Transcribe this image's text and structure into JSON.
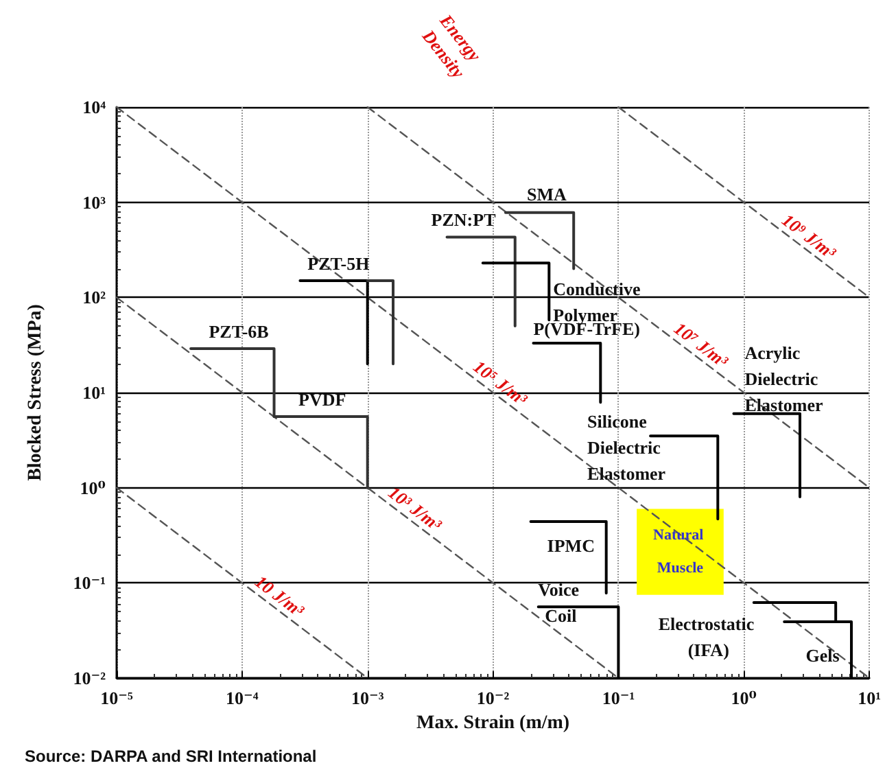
{
  "chart_data": {
    "type": "line",
    "xlabel": "Max. Strain (m/m)",
    "ylabel": "Blocked Stress (MPa)",
    "annotations": [
      "Energy Density",
      "Source: DARPA and SRI International"
    ],
    "log": "xy",
    "grid": true,
    "marker": "none",
    "xlim": [
      1e-05,
      10
    ],
    "ylim": [
      0.01,
      10000
    ],
    "xticks": [
      {
        "value": 1e-05,
        "label": "10⁻⁵"
      },
      {
        "value": 0.0001,
        "label": "10⁻⁴"
      },
      {
        "value": 0.001,
        "label": "10⁻³"
      },
      {
        "value": 0.01,
        "label": "10⁻²"
      },
      {
        "value": 0.1,
        "label": "10⁻¹"
      },
      {
        "value": 1,
        "label": "10⁰"
      },
      {
        "value": 10,
        "label": "10¹"
      }
    ],
    "yticks": [
      {
        "value": 0.01,
        "label": "10⁻²"
      },
      {
        "value": 0.1,
        "label": "10⁻¹"
      },
      {
        "value": 1,
        "label": "10⁰"
      },
      {
        "value": 10,
        "label": "10¹"
      },
      {
        "value": 100,
        "label": "10²"
      },
      {
        "value": 1000,
        "label": "10³"
      },
      {
        "value": 10000,
        "label": "10⁴"
      }
    ],
    "series": [
      {
        "name": "10 J/m³",
        "color": "#555555",
        "line_style": "dashed",
        "x": [
          1e-05,
          0.001
        ],
        "values": [
          1,
          0.01
        ]
      },
      {
        "name": "10³ J/m³",
        "color": "#555555",
        "line_style": "dashed",
        "x": [
          1e-05,
          0.1
        ],
        "values": [
          100,
          0.01
        ]
      },
      {
        "name": "10⁵ J/m³",
        "color": "#555555",
        "line_style": "dashed",
        "x": [
          1e-05,
          10
        ],
        "values": [
          10000,
          0.01
        ]
      },
      {
        "name": "10⁷ J/m³",
        "color": "#555555",
        "line_style": "dashed",
        "x": [
          0.001,
          10
        ],
        "values": [
          10000,
          1
        ]
      },
      {
        "name": "10⁹ J/m³",
        "color": "#555555",
        "line_style": "dashed",
        "x": [
          0.1,
          10
        ],
        "values": [
          10000,
          100
        ]
      },
      {
        "name": "PZT-6B",
        "color": "#333333",
        "x": [
          3.9e-05,
          0.00018,
          0.00018
        ],
        "values": [
          29,
          29,
          5.6
        ]
      },
      {
        "name": "PVDF",
        "color": "#333333",
        "x": [
          0.00018,
          0.001,
          0.001
        ],
        "values": [
          5.6,
          5.6,
          1
        ]
      },
      {
        "name": "PZT-5H",
        "color": "#000000",
        "x": [
          0.00029,
          0.001,
          0.001
        ],
        "values": [
          150,
          150,
          20
        ]
      },
      {
        "color": "#333333",
        "x": [
          0.001,
          0.0016,
          0.0016
        ],
        "values": [
          150,
          150,
          20
        ]
      },
      {
        "name": "PZN:PT",
        "color": "#333333",
        "x": [
          0.0043,
          0.015,
          0.015
        ],
        "values": [
          430,
          430,
          50
        ]
      },
      {
        "name": "SMA",
        "color": "#333333",
        "x": [
          0.0126,
          0.044,
          0.044
        ],
        "values": [
          780,
          780,
          200
        ]
      },
      {
        "name": "Conductive Polymer",
        "color": "#000000",
        "x": [
          0.0083,
          0.028,
          0.028
        ],
        "values": [
          230,
          230,
          58
        ]
      },
      {
        "name": "P(VDF-TrFE)",
        "color": "#000000",
        "x": [
          0.021,
          0.072,
          0.072
        ],
        "values": [
          33,
          33,
          7.9
        ]
      },
      {
        "name": "Acrylic Dielectric Elastomer",
        "color": "#000000",
        "x": [
          0.83,
          2.8,
          2.8
        ],
        "values": [
          6,
          6,
          0.8
        ]
      },
      {
        "name": "Silicone Dielectric Elastomer",
        "color": "#000000",
        "x": [
          0.18,
          0.62,
          0.62
        ],
        "values": [
          3.5,
          3.5,
          0.47
        ]
      },
      {
        "name": "IPMC",
        "color": "#000000",
        "x": [
          0.02,
          0.08,
          0.08
        ],
        "values": [
          0.44,
          0.44,
          0.078
        ]
      },
      {
        "name": "Voice Coil",
        "color": "#000000",
        "x": [
          0.023,
          0.1,
          0.1
        ],
        "values": [
          0.056,
          0.056,
          0.01
        ]
      },
      {
        "name": "Electrostatic (IFA)",
        "color": "#000000",
        "x": [
          1.2,
          5.4,
          5.4
        ],
        "values": [
          0.062,
          0.062,
          0.04
        ]
      },
      {
        "name": "Gels",
        "color": "#000000",
        "x": [
          2.1,
          7.2,
          7.2
        ],
        "values": [
          0.039,
          0.039,
          0.01
        ]
      },
      {
        "name": "Natural Muscle",
        "type": "area",
        "color": "#ffff00",
        "x": [
          0.14,
          0.69,
          0.69,
          0.14
        ],
        "values": [
          0.6,
          0.6,
          0.075,
          0.075
        ]
      }
    ]
  }
}
